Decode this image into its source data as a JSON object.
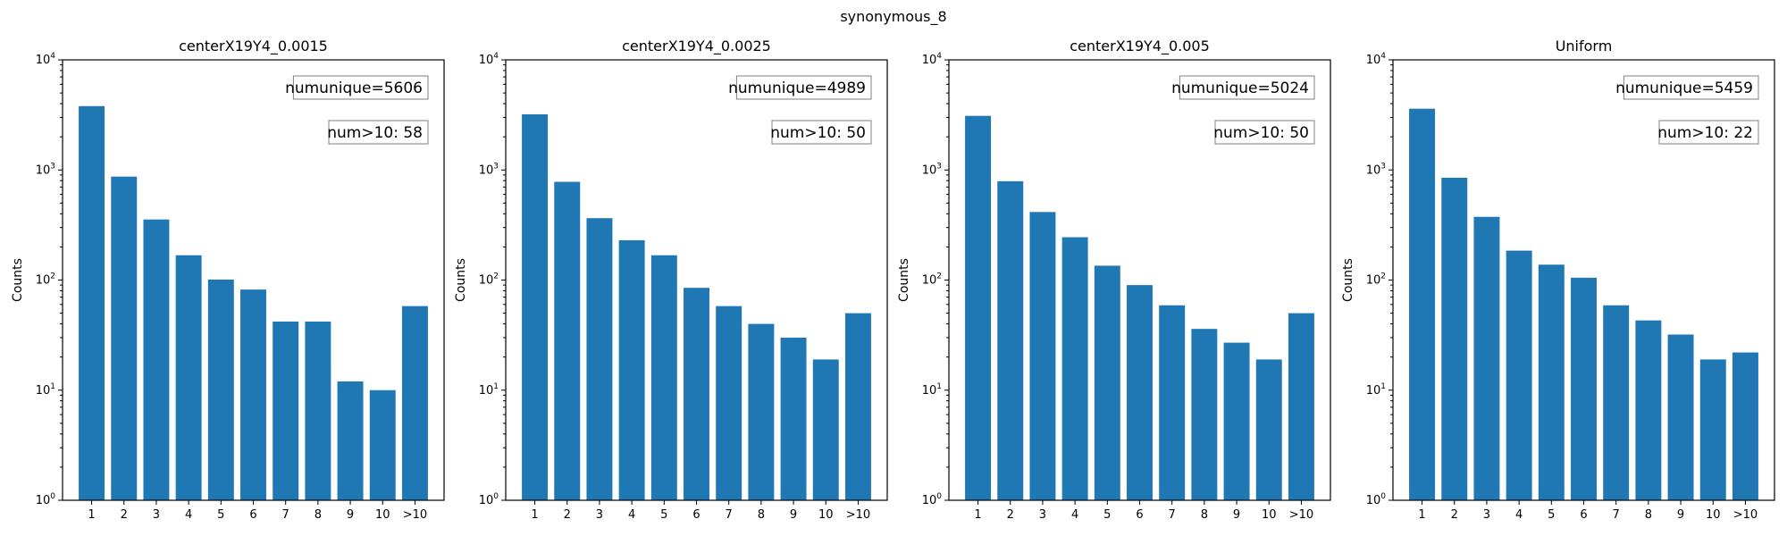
{
  "figure_title": "synonymous_8",
  "chart_data": [
    {
      "type": "bar",
      "title": "centerX19Y4_0.0015",
      "ylabel": "Counts",
      "xlabel": "",
      "yscale": "log",
      "ylim": [
        1,
        10000
      ],
      "yticks": [
        "10^0",
        "10^1",
        "10^2",
        "10^3",
        "10^4"
      ],
      "categories": [
        "1",
        "2",
        "3",
        "4",
        "5",
        "6",
        "7",
        "8",
        "9",
        "10",
        ">10"
      ],
      "values": [
        3800,
        870,
        355,
        168,
        101,
        82,
        42,
        42,
        12,
        10,
        58
      ],
      "color": "#1f77b4",
      "annotations": [
        "numunique=5606",
        "num>10: 58"
      ]
    },
    {
      "type": "bar",
      "title": "centerX19Y4_0.0025",
      "ylabel": "Counts",
      "xlabel": "",
      "yscale": "log",
      "ylim": [
        1,
        10000
      ],
      "yticks": [
        "10^0",
        "10^1",
        "10^2",
        "10^3",
        "10^4"
      ],
      "categories": [
        "1",
        "2",
        "3",
        "4",
        "5",
        "6",
        "7",
        "8",
        "9",
        "10",
        ">10"
      ],
      "values": [
        3200,
        780,
        365,
        230,
        168,
        85,
        58,
        40,
        30,
        19,
        50
      ],
      "color": "#1f77b4",
      "annotations": [
        "numunique=4989",
        "num>10: 50"
      ]
    },
    {
      "type": "bar",
      "title": "centerX19Y4_0.005",
      "ylabel": "Counts",
      "xlabel": "",
      "yscale": "log",
      "ylim": [
        1,
        10000
      ],
      "yticks": [
        "10^0",
        "10^1",
        "10^2",
        "10^3",
        "10^4"
      ],
      "categories": [
        "1",
        "2",
        "3",
        "4",
        "5",
        "6",
        "7",
        "8",
        "9",
        "10",
        ">10"
      ],
      "values": [
        3100,
        790,
        415,
        245,
        135,
        90,
        59,
        36,
        27,
        19,
        50
      ],
      "color": "#1f77b4",
      "annotations": [
        "numunique=5024",
        "num>10: 50"
      ]
    },
    {
      "type": "bar",
      "title": "Uniform",
      "ylabel": "Counts",
      "xlabel": "",
      "yscale": "log",
      "ylim": [
        1,
        10000
      ],
      "yticks": [
        "10^0",
        "10^1",
        "10^2",
        "10^3",
        "10^4"
      ],
      "categories": [
        "1",
        "2",
        "3",
        "4",
        "5",
        "6",
        "7",
        "8",
        "9",
        "10",
        ">10"
      ],
      "values": [
        3600,
        850,
        375,
        185,
        138,
        105,
        59,
        43,
        32,
        19,
        22
      ],
      "color": "#1f77b4",
      "annotations": [
        "numunique=5459",
        "num>10: 22"
      ]
    }
  ]
}
